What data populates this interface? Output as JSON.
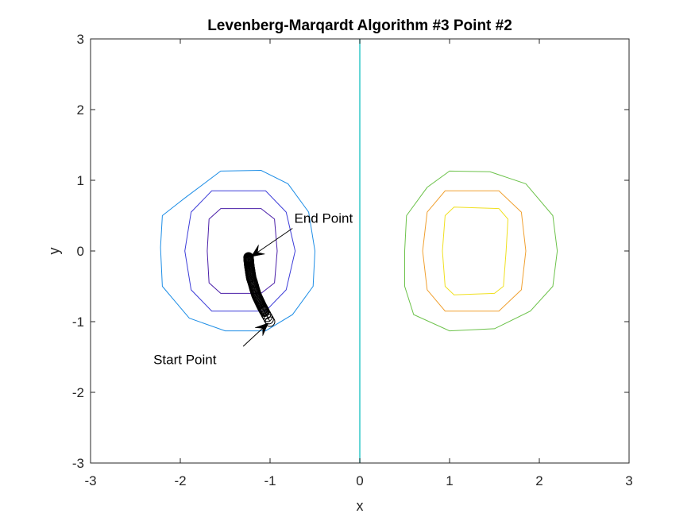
{
  "chart_data": {
    "type": "line",
    "title": "Levenberg-Marqardt Algorithm #3 Point #2",
    "xlabel": "x",
    "ylabel": "y",
    "xlim": [
      -3,
      3
    ],
    "ylim": [
      -3,
      3
    ],
    "xticks": [
      -3,
      -2,
      -1,
      0,
      1,
      2,
      3
    ],
    "yticks": [
      -3,
      -2,
      -1,
      0,
      1,
      2,
      3
    ],
    "xtick_labels": [
      "-3",
      "-2",
      "-1",
      "0",
      "1",
      "2",
      "3"
    ],
    "ytick_labels": [
      "-3",
      "-2",
      "-1",
      "0",
      "1",
      "2",
      "3"
    ],
    "grid": false,
    "box": true,
    "contours": [
      {
        "color": "#1e8ee6",
        "points": [
          [
            -1.55,
            1.13
          ],
          [
            -1.1,
            1.14
          ],
          [
            -0.8,
            0.95
          ],
          [
            -0.57,
            0.55
          ],
          [
            -0.5,
            0.0
          ],
          [
            -0.52,
            -0.5
          ],
          [
            -0.75,
            -0.9
          ],
          [
            -1.05,
            -1.13
          ],
          [
            -1.5,
            -1.13
          ],
          [
            -1.9,
            -0.95
          ],
          [
            -2.2,
            -0.5
          ],
          [
            -2.22,
            0.05
          ],
          [
            -2.2,
            0.5
          ],
          [
            -1.95,
            0.75
          ]
        ]
      },
      {
        "color": "#3c3cd8",
        "points": [
          [
            -1.65,
            0.85
          ],
          [
            -1.05,
            0.85
          ],
          [
            -0.82,
            0.55
          ],
          [
            -0.72,
            0.0
          ],
          [
            -0.82,
            -0.55
          ],
          [
            -1.05,
            -0.85
          ],
          [
            -1.65,
            -0.85
          ],
          [
            -1.88,
            -0.55
          ],
          [
            -1.95,
            0.0
          ],
          [
            -1.88,
            0.55
          ]
        ]
      },
      {
        "color": "#4a1ea8",
        "points": [
          [
            -1.55,
            0.6
          ],
          [
            -1.1,
            0.6
          ],
          [
            -0.95,
            0.45
          ],
          [
            -0.92,
            0.0
          ],
          [
            -0.95,
            -0.45
          ],
          [
            -1.1,
            -0.6
          ],
          [
            -1.55,
            -0.6
          ],
          [
            -1.68,
            -0.45
          ],
          [
            -1.7,
            0.0
          ],
          [
            -1.68,
            0.45
          ]
        ]
      },
      {
        "color": "#6cc24a",
        "points": [
          [
            1.0,
            1.13
          ],
          [
            1.45,
            1.12
          ],
          [
            1.85,
            0.95
          ],
          [
            2.15,
            0.5
          ],
          [
            2.2,
            0.0
          ],
          [
            2.15,
            -0.5
          ],
          [
            1.9,
            -0.85
          ],
          [
            1.5,
            -1.1
          ],
          [
            1.0,
            -1.13
          ],
          [
            0.6,
            -0.9
          ],
          [
            0.5,
            -0.5
          ],
          [
            0.5,
            0.0
          ],
          [
            0.52,
            0.5
          ],
          [
            0.75,
            0.9
          ]
        ]
      },
      {
        "color": "#f0a030",
        "points": [
          [
            0.95,
            0.85
          ],
          [
            1.55,
            0.85
          ],
          [
            1.8,
            0.55
          ],
          [
            1.85,
            0.0
          ],
          [
            1.8,
            -0.55
          ],
          [
            1.55,
            -0.85
          ],
          [
            0.95,
            -0.85
          ],
          [
            0.75,
            -0.55
          ],
          [
            0.7,
            0.0
          ],
          [
            0.75,
            0.55
          ]
        ]
      },
      {
        "color": "#f0e020",
        "points": [
          [
            1.05,
            0.62
          ],
          [
            1.55,
            0.6
          ],
          [
            1.65,
            0.45
          ],
          [
            1.63,
            0.0
          ],
          [
            1.6,
            -0.5
          ],
          [
            1.5,
            -0.6
          ],
          [
            1.05,
            -0.62
          ],
          [
            0.95,
            -0.5
          ],
          [
            0.92,
            0.0
          ],
          [
            0.95,
            0.5
          ]
        ]
      }
    ],
    "vertical_line": {
      "x": 0,
      "color": "#32c8c8"
    },
    "path": {
      "color": "#000000",
      "marker": "circle",
      "points": [
        [
          -1.0,
          -1.0
        ],
        [
          -1.03,
          -0.93
        ],
        [
          -1.06,
          -0.86
        ],
        [
          -1.09,
          -0.79
        ],
        [
          -1.12,
          -0.71
        ],
        [
          -1.15,
          -0.63
        ],
        [
          -1.17,
          -0.55
        ],
        [
          -1.19,
          -0.46
        ],
        [
          -1.21,
          -0.38
        ],
        [
          -1.22,
          -0.3
        ],
        [
          -1.23,
          -0.22
        ],
        [
          -1.235,
          -0.16
        ],
        [
          -1.238,
          -0.12
        ],
        [
          -1.24,
          -0.09
        ]
      ]
    },
    "annotations": [
      {
        "text": "Start Point",
        "text_xy": [
          -2.3,
          -1.6
        ],
        "arrow_from": [
          -1.3,
          -1.35
        ],
        "arrow_to": [
          -1.02,
          -1.02
        ]
      },
      {
        "text": "End Point",
        "text_xy": [
          -0.73,
          0.4
        ],
        "arrow_from": [
          -0.75,
          0.32
        ],
        "arrow_to": [
          -1.21,
          -0.08
        ]
      }
    ]
  }
}
